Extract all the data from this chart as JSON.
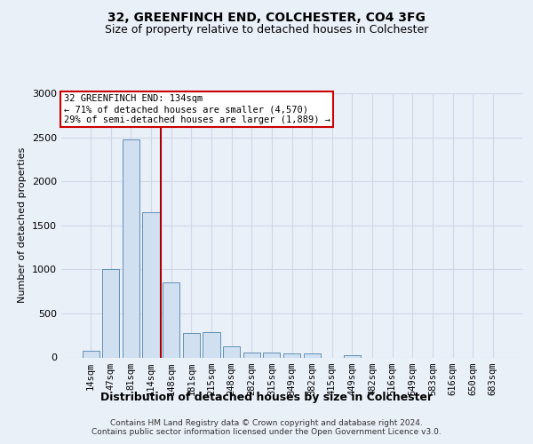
{
  "title1": "32, GREENFINCH END, COLCHESTER, CO4 3FG",
  "title2": "Size of property relative to detached houses in Colchester",
  "xlabel": "Distribution of detached houses by size in Colchester",
  "ylabel": "Number of detached properties",
  "footer1": "Contains HM Land Registry data © Crown copyright and database right 2024.",
  "footer2": "Contains public sector information licensed under the Open Government Licence v3.0.",
  "bar_color": "#d0e0f0",
  "bar_edge_color": "#6090b8",
  "background_color": "#eaf0f8",
  "categories": [
    "14sqm",
    "47sqm",
    "81sqm",
    "114sqm",
    "148sqm",
    "181sqm",
    "215sqm",
    "248sqm",
    "282sqm",
    "315sqm",
    "349sqm",
    "382sqm",
    "415sqm",
    "449sqm",
    "482sqm",
    "516sqm",
    "549sqm",
    "583sqm",
    "616sqm",
    "650sqm",
    "683sqm"
  ],
  "values": [
    80,
    1000,
    2480,
    1650,
    850,
    280,
    285,
    130,
    60,
    55,
    50,
    45,
    0,
    30,
    0,
    0,
    0,
    0,
    0,
    0,
    0
  ],
  "annotation_line1": "32 GREENFINCH END: 134sqm",
  "annotation_line2": "← 71% of detached houses are smaller (4,570)",
  "annotation_line3": "29% of semi-detached houses are larger (1,889) →",
  "vline_color": "#aa0000",
  "vline_x": 3.5,
  "annotation_box_facecolor": "#ffffff",
  "annotation_box_edgecolor": "#cc0000",
  "ylim": [
    0,
    3000
  ],
  "yticks": [
    0,
    500,
    1000,
    1500,
    2000,
    2500,
    3000
  ],
  "grid_color": "#d0d8e8",
  "title1_fontsize": 10,
  "title2_fontsize": 9,
  "ylabel_fontsize": 8,
  "xlabel_fontsize": 9,
  "tick_fontsize": 7.5,
  "footer_fontsize": 6.5
}
